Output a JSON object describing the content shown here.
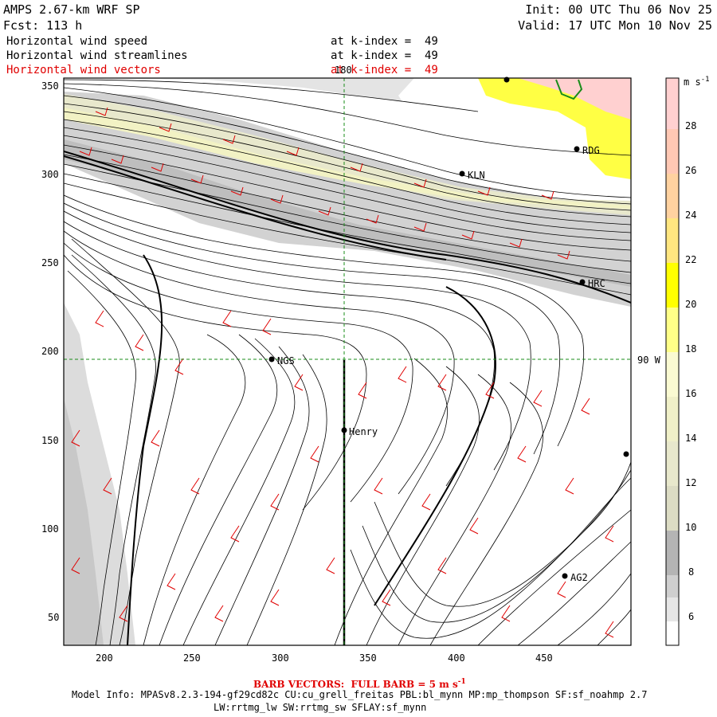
{
  "header": {
    "title": "AMPS 2.67-km WRF SP",
    "forecast": "Fcst: 113 h",
    "init": "Init: 00 UTC Thu 06 Nov 25",
    "valid": "Valid: 17 UTC Mon 10 Nov 25"
  },
  "fields": [
    {
      "name": "Horizontal wind speed",
      "level": "at k-index =  49",
      "color": "#000000"
    },
    {
      "name": "Horizontal wind streamlines",
      "level": "at k-index =  49",
      "color": "#000000"
    },
    {
      "name": "Horizontal wind vectors",
      "level": "at k-index =  49",
      "color": "#e00000"
    }
  ],
  "axes": {
    "x_ticks": [
      "200",
      "250",
      "300",
      "350",
      "400",
      "450"
    ],
    "y_ticks": [
      "350",
      "300",
      "250",
      "200",
      "150",
      "100",
      "50"
    ],
    "lon_label": "180",
    "lat_label": "90 W"
  },
  "stations": [
    {
      "name": "RDG"
    },
    {
      "name": "KLN"
    },
    {
      "name": "HRC"
    },
    {
      "name": "NGS"
    },
    {
      "name": "Henry"
    },
    {
      "name": "AG2"
    }
  ],
  "colorbar": {
    "unit": "m s",
    "unit_exp": "-1",
    "labels": [
      "28",
      "26",
      "24",
      "22",
      "20",
      "18",
      "16",
      "14",
      "12",
      "10",
      "8",
      "6"
    ],
    "colors": [
      "#ffffff",
      "#e6e6e6",
      "#cfcfcf",
      "#b4b4b4",
      "#dcdcc4",
      "#f0f0c8",
      "#fafad2",
      "#ffffaa",
      "#ffff00",
      "#ffff44",
      "#ffe680",
      "#ffd2a0",
      "#ffc8b4",
      "#ffd0d0"
    ]
  },
  "footer": {
    "barb_note": "BARB VECTORS:  FULL BARB = 5 m s",
    "barb_exp": "-1",
    "model_info_1": "Model Info: MPASv8.2.3-194-gf29cd82c CU:cu_grell_freitas PBL:bl_mynn MP:mp_thompson SF:sf_noahmp 2.7",
    "model_info_2": "LW:rrtmg_lw SW:rrtmg_sw SFLAY:sf_mynn"
  }
}
